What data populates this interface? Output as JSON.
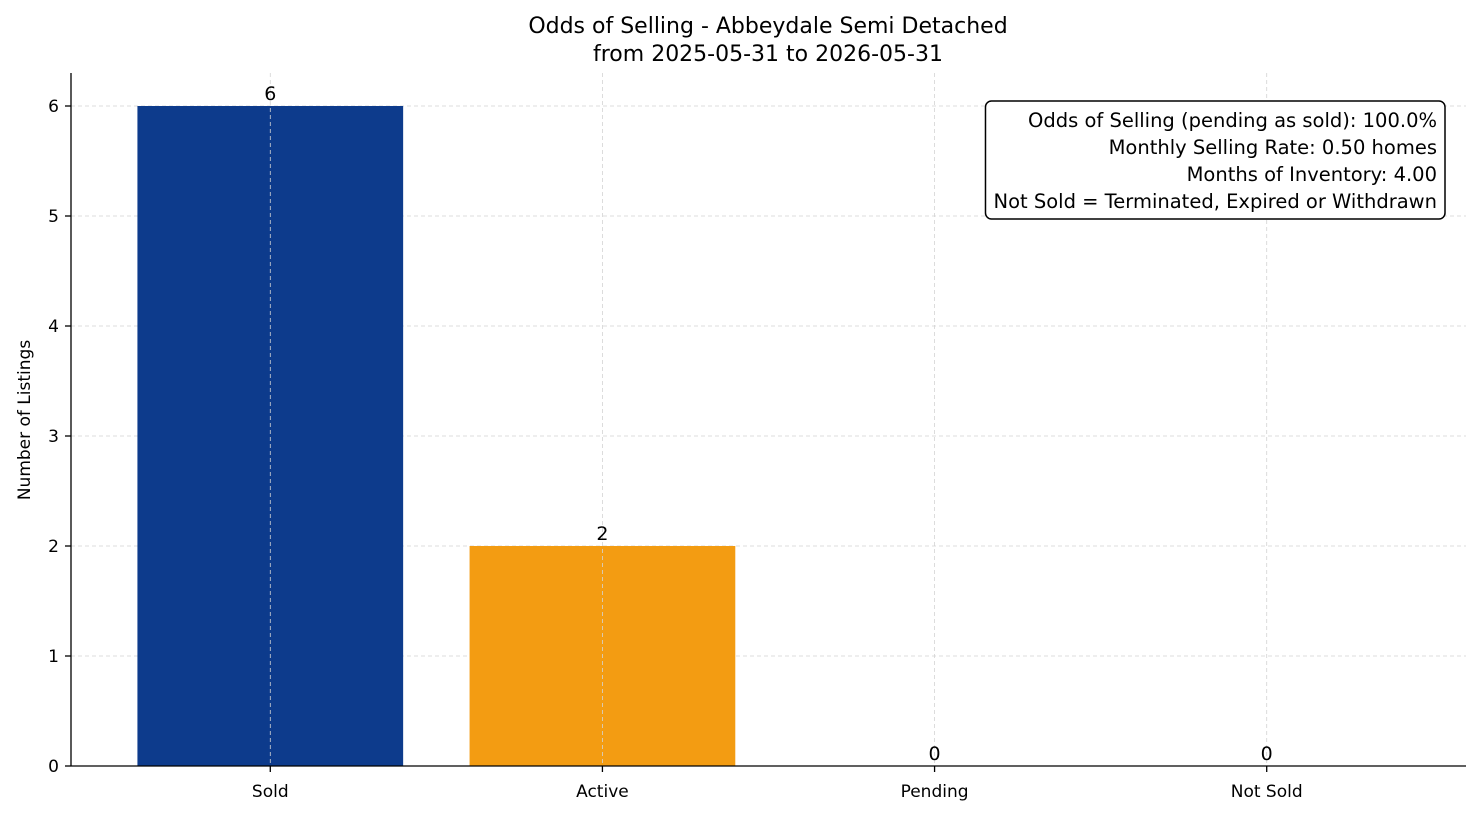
{
  "chart_data": {
    "type": "bar",
    "title": "Odds of Selling - Abbeydale Semi Detached",
    "subtitle": "from 2025-05-31 to 2026-05-31",
    "xlabel": "",
    "ylabel": "Number of Listings",
    "categories": [
      "Sold",
      "Active",
      "Pending",
      "Not Sold"
    ],
    "values": [
      6,
      2,
      0,
      0
    ],
    "data_labels": [
      "6",
      "2",
      "0",
      "0"
    ],
    "colors": [
      "#0d3b8c",
      "#f39c12",
      "#2ca02c",
      "#d62728"
    ],
    "ylim": [
      0,
      6.3
    ],
    "yticks": [
      0,
      1,
      2,
      3,
      4,
      5,
      6
    ],
    "grid": true,
    "stats_box": {
      "placement": "top-right",
      "lines": [
        "Odds of Selling (pending as sold): 100.0%",
        "Monthly Selling Rate: 0.50 homes",
        "Months of Inventory: 4.00",
        "Not Sold = Terminated, Expired or Withdrawn"
      ]
    }
  }
}
